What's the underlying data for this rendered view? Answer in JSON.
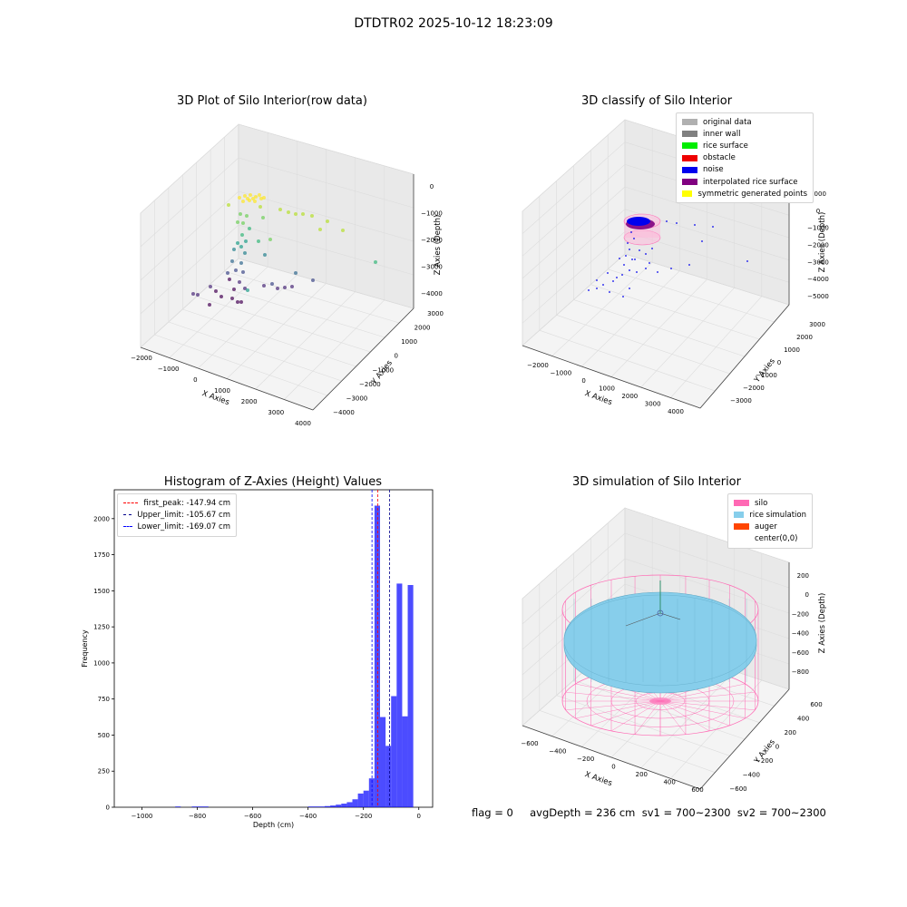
{
  "figure_title": "DTDTR02 2025-10-12 18:23:09",
  "status_text": "flag = 0     avgDepth = 236 cm  sv1 = 700~2300  sv2 = 700~2300",
  "chart_data": [
    {
      "type": "scatter",
      "title": "3D Plot of Silo Interior(row data)",
      "xlabel": "X Axies",
      "ylabel": "Y Axies",
      "zlabel": "Z Axies (Depth)",
      "x_ticks": [
        "−2000",
        "−1000",
        "0",
        "1000",
        "2000",
        "3000",
        "4000"
      ],
      "y_ticks": [
        "−4000",
        "−3000",
        "−2000",
        "−1000",
        "0",
        "1000",
        "2000",
        "3000"
      ],
      "z_ticks": [
        "−4000",
        "−3000",
        "−2000",
        "−1000",
        "0"
      ],
      "xlim": [
        -2000,
        4000
      ],
      "ylim": [
        -4000,
        3000
      ],
      "zlim": [
        -4400,
        0
      ],
      "colormap": "viridis"
    },
    {
      "type": "scatter",
      "title": "3D classify of Silo Interior",
      "xlabel": "X Axies",
      "ylabel": "Y Axies",
      "zlabel": "Z Axies (Depth)",
      "x_ticks": [
        "−2000",
        "−1000",
        "0",
        "1000",
        "2000",
        "3000",
        "4000"
      ],
      "y_ticks": [
        "−3000",
        "−2000",
        "−1000",
        "0",
        "1000",
        "2000",
        "3000"
      ],
      "z_ticks": [
        "−5000",
        "−4000",
        "−3000",
        "−2000",
        "−1000",
        "0",
        "1000"
      ],
      "legend": [
        {
          "label": "original data",
          "color": "#b0b0b0"
        },
        {
          "label": "inner wall",
          "color": "#808080"
        },
        {
          "label": "rice surface",
          "color": "#00ee00"
        },
        {
          "label": "obstacle",
          "color": "#ee0000"
        },
        {
          "label": "noise",
          "color": "#0000ee"
        },
        {
          "label": "interpolated rice surface",
          "color": "#800080"
        },
        {
          "label": "symmetric generated points",
          "color": "#ffff00"
        }
      ]
    },
    {
      "type": "bar",
      "title": "Histogram of Z-Axies (Height) Values",
      "xlabel": "Depth (cm)",
      "ylabel": "Frequency",
      "xlim": [
        -1100,
        50
      ],
      "ylim": [
        0,
        2200
      ],
      "x_ticks": [
        -1000,
        -800,
        -600,
        -400,
        -200,
        0
      ],
      "x_tick_labels": [
        "−1000",
        "−800",
        "−600",
        "−400",
        "−200",
        "0"
      ],
      "y_ticks": [
        0,
        250,
        500,
        750,
        1000,
        1250,
        1500,
        1750,
        2000
      ],
      "bar_color": "#0000ff",
      "bins": [
        {
          "start": -880,
          "end": -860,
          "value": 5
        },
        {
          "start": -820,
          "end": -760,
          "value": 5
        },
        {
          "start": -400,
          "end": -340,
          "value": 5
        },
        {
          "start": -340,
          "end": -320,
          "value": 8
        },
        {
          "start": -320,
          "end": -300,
          "value": 12
        },
        {
          "start": -300,
          "end": -280,
          "value": 18
        },
        {
          "start": -280,
          "end": -260,
          "value": 25
        },
        {
          "start": -260,
          "end": -240,
          "value": 35
        },
        {
          "start": -240,
          "end": -220,
          "value": 55
        },
        {
          "start": -220,
          "end": -200,
          "value": 95
        },
        {
          "start": -200,
          "end": -180,
          "value": 115
        },
        {
          "start": -180,
          "end": -160,
          "value": 200
        },
        {
          "start": -160,
          "end": -140,
          "value": 2090
        },
        {
          "start": -140,
          "end": -120,
          "value": 625
        },
        {
          "start": -120,
          "end": -100,
          "value": 425
        },
        {
          "start": -100,
          "end": -80,
          "value": 770
        },
        {
          "start": -80,
          "end": -60,
          "value": 1550
        },
        {
          "start": -60,
          "end": -40,
          "value": 630
        },
        {
          "start": -40,
          "end": -20,
          "value": 1540
        }
      ],
      "vlines": [
        {
          "label": "first_peak: -147.94 cm",
          "value": -147.94,
          "color": "#ff0000"
        },
        {
          "label": "Upper_limit: -105.67 cm",
          "value": -105.67,
          "color": "#00008b"
        },
        {
          "label": "Lower_limit: -169.07 cm",
          "value": -169.07,
          "color": "#0000ff"
        }
      ]
    },
    {
      "type": "scatter",
      "title": "3D simulation of Silo Interior",
      "xlabel": "X Axies",
      "ylabel": "Y Axies",
      "zlabel": "Z Axies (Depth)",
      "x_ticks": [
        "−600",
        "−400",
        "−200",
        "0",
        "200",
        "400",
        "600"
      ],
      "y_ticks": [
        "−600",
        "−400",
        "−200",
        "0",
        "200",
        "400",
        "600"
      ],
      "z_ticks": [
        "−800",
        "−600",
        "−400",
        "−200",
        "0",
        "200"
      ],
      "legend": [
        {
          "label": "silo",
          "color": "#ff69b4"
        },
        {
          "label": "rice simulation",
          "color": "#87ceeb"
        },
        {
          "label": "auger",
          "color": "#ff4500"
        },
        {
          "label": "center(0,0)",
          "color": "#ffffff"
        }
      ]
    }
  ]
}
